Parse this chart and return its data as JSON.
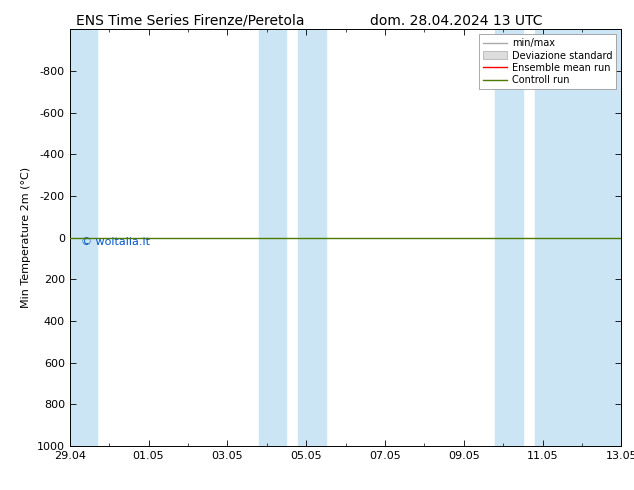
{
  "title_left": "ENS Time Series Firenze/Peretola",
  "title_right": "dom. 28.04.2024 13 UTC",
  "ylabel": "Min Temperature 2m (°C)",
  "ylim_bottom": 1000,
  "ylim_top": -1000,
  "yticks": [
    -800,
    -600,
    -400,
    -200,
    0,
    200,
    400,
    600,
    800,
    1000
  ],
  "xtick_labels": [
    "29.04",
    "01.05",
    "03.05",
    "05.05",
    "07.05",
    "09.05",
    "11.05",
    "13.05"
  ],
  "xtick_positions": [
    0,
    2,
    4,
    6,
    8,
    10,
    12,
    14
  ],
  "band_ranges": [
    [
      0.0,
      0.7
    ],
    [
      4.8,
      5.5
    ],
    [
      5.8,
      6.5
    ],
    [
      10.8,
      11.5
    ],
    [
      11.8,
      14.0
    ]
  ],
  "watermark": "© woitalia.it",
  "bg_color": "#ffffff",
  "band_color": "#cce5f5",
  "legend_entries": [
    "min/max",
    "Deviazione standard",
    "Ensemble mean run",
    "Controll run"
  ],
  "control_color": "#4d7a00",
  "ensemble_color": "#ff0000",
  "title_fontsize": 10,
  "tick_fontsize": 8,
  "ylabel_fontsize": 8,
  "watermark_color": "#0055cc"
}
